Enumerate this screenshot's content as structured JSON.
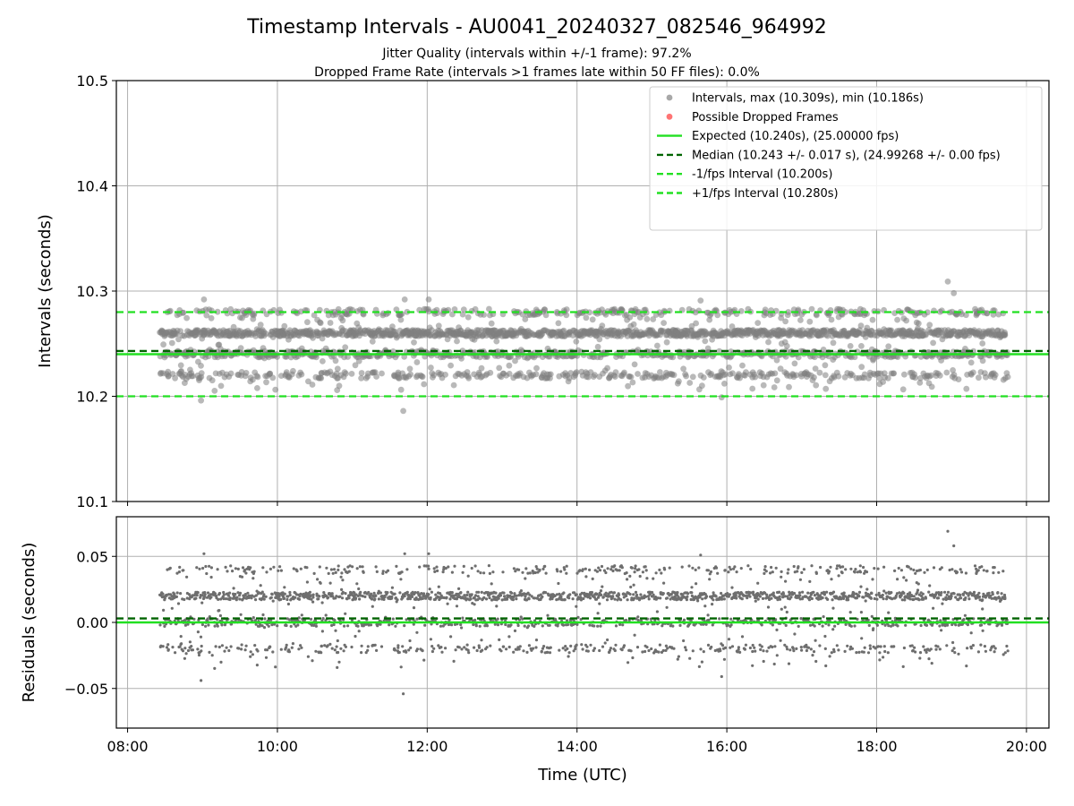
{
  "title": "Timestamp Intervals - AU0041_20240327_082546_964992",
  "subtitle_1": "Jitter Quality (intervals within +/-1 frame): 97.2%",
  "subtitle_2": "Dropped Frame Rate (intervals >1 frames late within 50 FF files): 0.0%",
  "colors": {
    "points": "#808080",
    "dropped": "#ff4d4d",
    "expected": "#22e022",
    "median": "#006400",
    "fps_band": "#22e022",
    "grid": "#b0b0b0"
  },
  "chart_data": [
    {
      "type": "scatter",
      "name": "intervals-panel",
      "xlabel": "",
      "ylabel": "Intervals (seconds)",
      "x_unit": "hours UTC",
      "xlim": [
        7.85,
        20.3
      ],
      "ylim": [
        10.1,
        10.5
      ],
      "y_ticks": [
        10.1,
        10.2,
        10.3,
        10.4,
        10.5
      ],
      "y_tick_labels": [
        "10.1",
        "10.2",
        "10.3",
        "10.4",
        "10.5"
      ],
      "grid": true,
      "legend_position": "top-right",
      "legend": [
        {
          "label": "Intervals, max (10.309s), min (10.186s)",
          "kind": "marker",
          "color": "#999999"
        },
        {
          "label": "Possible Dropped Frames",
          "kind": "marker",
          "color": "#ff5c5c"
        },
        {
          "label": "Expected (10.240s), (25.00000 fps)",
          "kind": "line",
          "color": "#22e022"
        },
        {
          "label": "Median (10.243 +/- 0.017 s), (24.99268 +/- 0.00 fps)",
          "kind": "dashed",
          "color": "#006400"
        },
        {
          "label": "-1/fps Interval (10.200s)",
          "kind": "dashed",
          "color": "#22e022"
        },
        {
          "label": "+1/fps Interval (10.280s)",
          "kind": "dashed",
          "color": "#22e022"
        }
      ],
      "reference_lines": {
        "expected": 10.24,
        "median": 10.243,
        "minus_one_fps": 10.2,
        "plus_one_fps": 10.28
      },
      "points_summary": {
        "x_start": 8.43,
        "x_end": 19.75,
        "max": 10.309,
        "min": 10.186,
        "levels": [
          10.22,
          10.24,
          10.26,
          10.28
        ]
      },
      "outliers": [
        {
          "x": 8.98,
          "y": 10.196
        },
        {
          "x": 9.02,
          "y": 10.292
        },
        {
          "x": 11.68,
          "y": 10.186
        },
        {
          "x": 11.7,
          "y": 10.292
        },
        {
          "x": 12.02,
          "y": 10.292
        },
        {
          "x": 15.65,
          "y": 10.291
        },
        {
          "x": 15.93,
          "y": 10.199
        },
        {
          "x": 18.95,
          "y": 10.309
        },
        {
          "x": 19.03,
          "y": 10.298
        }
      ]
    },
    {
      "type": "scatter",
      "name": "residuals-panel",
      "xlabel": "Time (UTC)",
      "ylabel": "Residuals (seconds)",
      "xlim": [
        7.85,
        20.3
      ],
      "ylim": [
        -0.08,
        0.08
      ],
      "y_ticks": [
        -0.05,
        0.0,
        0.05
      ],
      "y_tick_labels": [
        "−0.05",
        "0.00",
        "0.05"
      ],
      "x_ticks": [
        8,
        10,
        12,
        14,
        16,
        18,
        20
      ],
      "x_tick_labels": [
        "08:00",
        "10:00",
        "12:00",
        "14:00",
        "16:00",
        "18:00",
        "20:00"
      ],
      "grid": true,
      "reference_lines": {
        "zero": 0.0,
        "median_offset": 0.003
      },
      "outliers": [
        {
          "x": 8.9,
          "y": -0.044
        },
        {
          "x": 9.02,
          "y": 0.053
        },
        {
          "x": 11.68,
          "y": -0.053
        },
        {
          "x": 11.7,
          "y": 0.052
        },
        {
          "x": 12.02,
          "y": 0.052
        },
        {
          "x": 15.65,
          "y": 0.051
        },
        {
          "x": 15.93,
          "y": -0.041
        },
        {
          "x": 18.95,
          "y": 0.069
        },
        {
          "x": 19.03,
          "y": 0.058
        }
      ]
    }
  ]
}
